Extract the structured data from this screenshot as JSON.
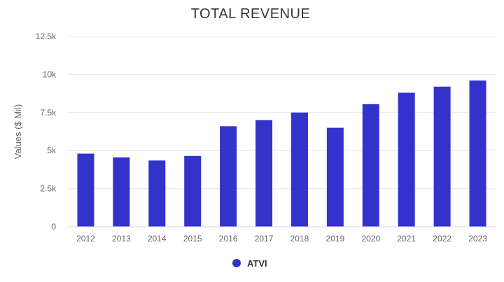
{
  "chart_data": {
    "type": "bar",
    "title": "TOTAL REVENUE",
    "xlabel": "",
    "ylabel": "Values ($ Mil)",
    "categories": [
      "2012",
      "2013",
      "2014",
      "2015",
      "2016",
      "2017",
      "2018",
      "2019",
      "2020",
      "2021",
      "2022",
      "2023"
    ],
    "series": [
      {
        "name": "ATVI",
        "color": "#3333cc",
        "values": [
          4800,
          4550,
          4350,
          4650,
          6600,
          7000,
          7500,
          6500,
          8050,
          8800,
          9200,
          9600
        ]
      }
    ],
    "ylim": [
      0,
      12500
    ],
    "yticks": [
      0,
      2500,
      5000,
      7500,
      10000,
      12500
    ],
    "ytick_labels": [
      "0",
      "2.5k",
      "5k",
      "7.5k",
      "10k",
      "12.5k"
    ],
    "grid": true,
    "legend": "bottom-center"
  }
}
